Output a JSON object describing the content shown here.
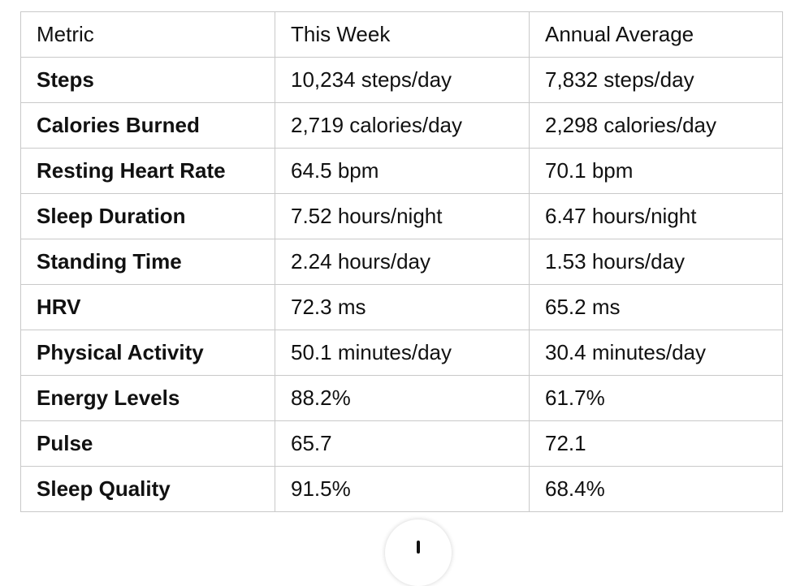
{
  "table": {
    "headers": [
      "Metric",
      "This Week",
      "Annual Average"
    ],
    "rows": [
      [
        "Steps",
        "10,234 steps/day",
        "7,832 steps/day"
      ],
      [
        "Calories Burned",
        "2,719 calories/day",
        "2,298 calories/day"
      ],
      [
        "Resting Heart Rate",
        "64.5 bpm",
        "70.1 bpm"
      ],
      [
        "Sleep Duration",
        "7.52 hours/night",
        "6.47 hours/night"
      ],
      [
        "Standing Time",
        "2.24 hours/day",
        "1.53 hours/day"
      ],
      [
        "HRV",
        "72.3 ms",
        "65.2 ms"
      ],
      [
        "Physical Activity",
        "50.1 minutes/day",
        "30.4 minutes/day"
      ],
      [
        "Energy Levels",
        "88.2%",
        "61.7%"
      ],
      [
        "Pulse",
        "65.7",
        "72.1"
      ],
      [
        "Sleep Quality",
        "91.5%",
        "68.4%"
      ]
    ]
  },
  "fab": {
    "icon": "scroll-down-arrow-icon"
  }
}
